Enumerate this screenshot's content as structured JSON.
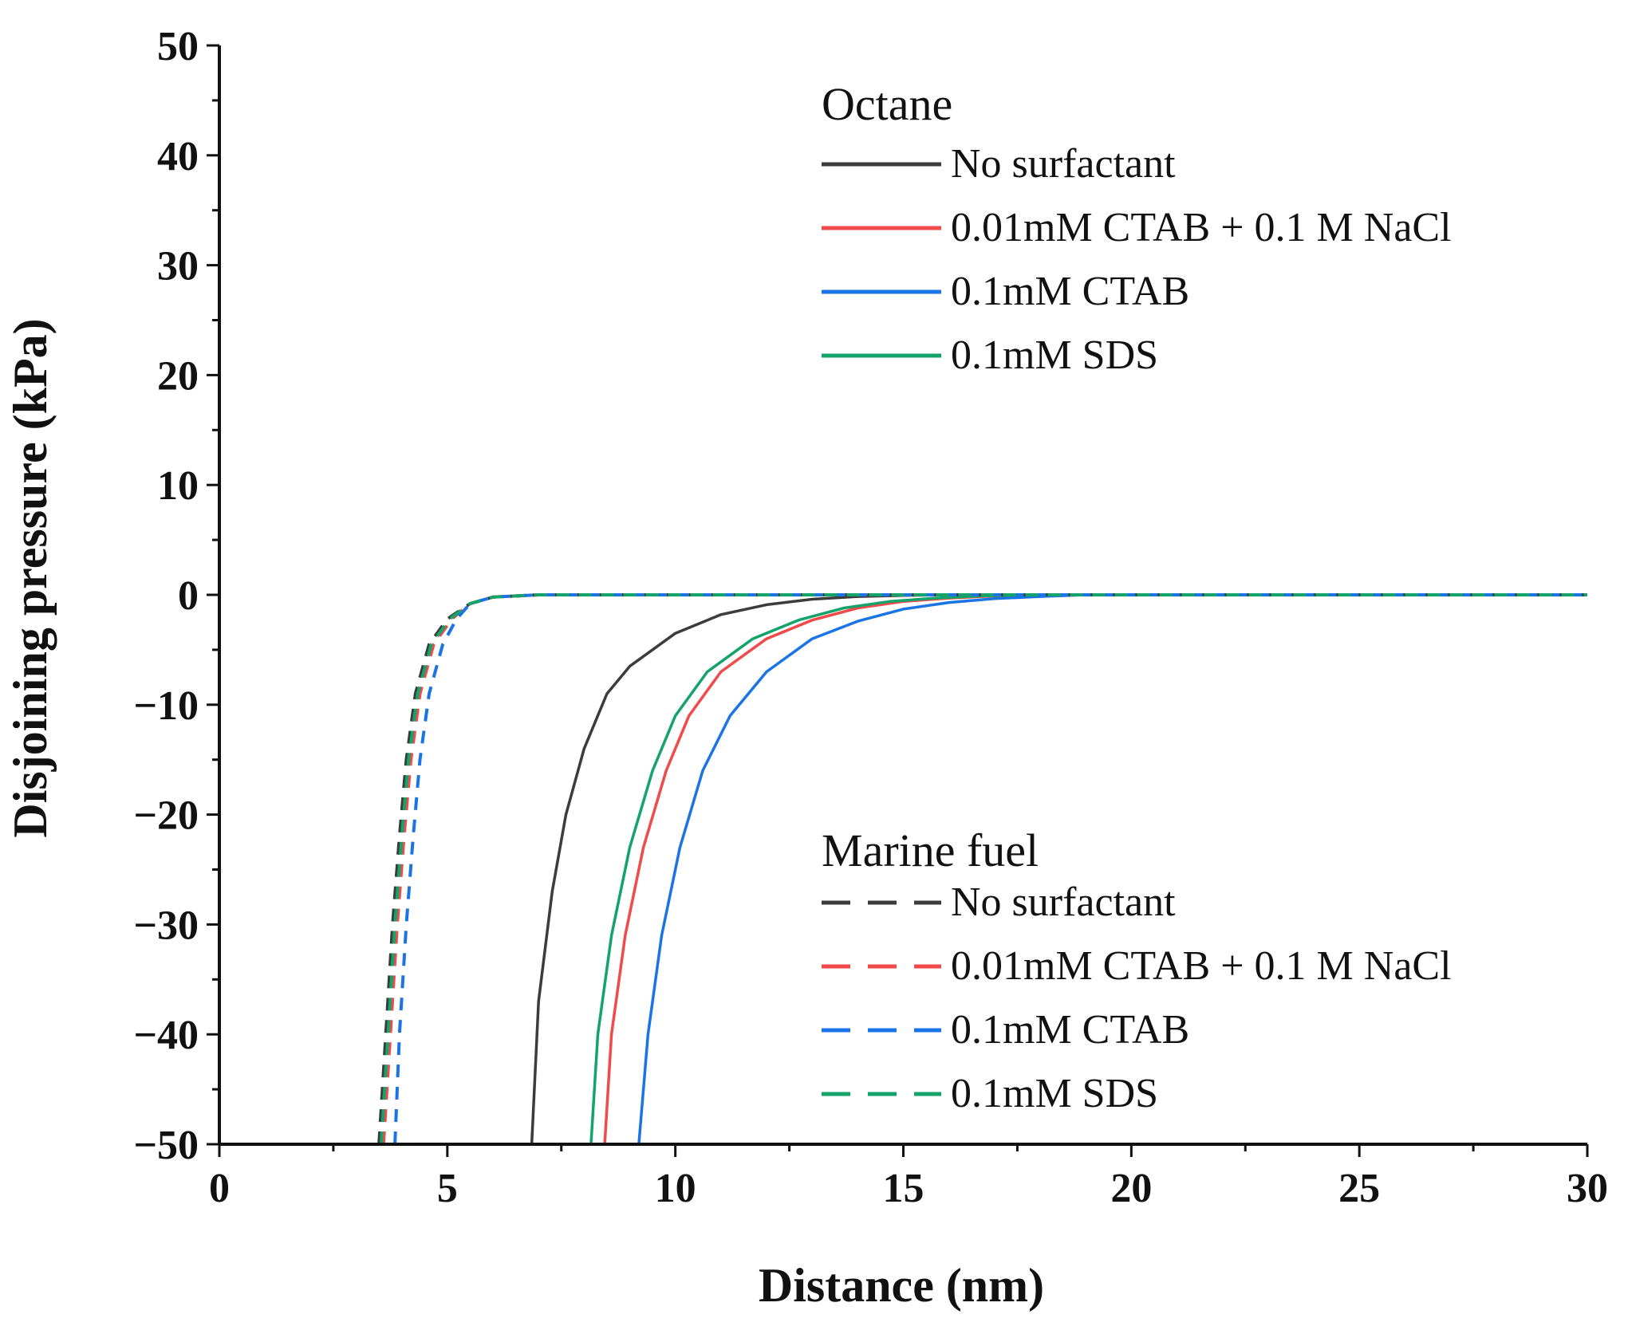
{
  "chart_data": {
    "type": "line",
    "title": "",
    "xlabel": "Distance (nm)",
    "ylabel": "Disjoining pressure (kPa)",
    "xlim": [
      0,
      30
    ],
    "ylim": [
      -50,
      50
    ],
    "x_ticks": [
      "0",
      "5",
      "10",
      "15",
      "20",
      "25",
      "30"
    ],
    "y_ticks": [
      "50",
      "40",
      "30",
      "20",
      "10",
      "0",
      "−10",
      "−20",
      "−30",
      "−40",
      "−50"
    ],
    "grid": false,
    "legend_groups": [
      {
        "title": "Octane",
        "placement": "top-right",
        "line_style": "solid",
        "series": [
          {
            "name": "No surfactant",
            "color": "#3c3c3c",
            "points": [
              [
                6.85,
                -50
              ],
              [
                7.0,
                -37
              ],
              [
                7.3,
                -27
              ],
              [
                7.6,
                -20
              ],
              [
                8.0,
                -14
              ],
              [
                8.5,
                -9
              ],
              [
                9.0,
                -6.5
              ],
              [
                10.0,
                -3.5
              ],
              [
                11.0,
                -1.8
              ],
              [
                12.0,
                -0.9
              ],
              [
                13.0,
                -0.4
              ],
              [
                14.0,
                -0.15
              ],
              [
                15.0,
                -0.05
              ],
              [
                16.0,
                0
              ],
              [
                30.0,
                0
              ]
            ]
          },
          {
            "name": "0.01mM CTAB + 0.1 M NaCl",
            "color": "#f04a4a",
            "points": [
              [
                8.45,
                -50
              ],
              [
                8.6,
                -40
              ],
              [
                8.9,
                -31
              ],
              [
                9.3,
                -23
              ],
              [
                9.8,
                -16
              ],
              [
                10.3,
                -11
              ],
              [
                11.0,
                -7
              ],
              [
                12.0,
                -4
              ],
              [
                13.0,
                -2.3
              ],
              [
                14.0,
                -1.2
              ],
              [
                15.0,
                -0.6
              ],
              [
                16.0,
                -0.3
              ],
              [
                17.0,
                -0.1
              ],
              [
                18.0,
                0
              ],
              [
                30.0,
                0
              ]
            ]
          },
          {
            "name": "0.1mM CTAB",
            "color": "#1a74e6",
            "points": [
              [
                9.2,
                -50
              ],
              [
                9.4,
                -40
              ],
              [
                9.7,
                -31
              ],
              [
                10.1,
                -23
              ],
              [
                10.6,
                -16
              ],
              [
                11.2,
                -11
              ],
              [
                12.0,
                -7
              ],
              [
                13.0,
                -4
              ],
              [
                14.0,
                -2.4
              ],
              [
                15.0,
                -1.3
              ],
              [
                16.0,
                -0.7
              ],
              [
                17.0,
                -0.35
              ],
              [
                18.0,
                -0.15
              ],
              [
                19.0,
                0
              ],
              [
                30.0,
                0
              ]
            ]
          },
          {
            "name": "0.1mM SDS",
            "color": "#14a36a",
            "points": [
              [
                8.15,
                -50
              ],
              [
                8.3,
                -40
              ],
              [
                8.6,
                -31
              ],
              [
                9.0,
                -23
              ],
              [
                9.5,
                -16
              ],
              [
                10.0,
                -11
              ],
              [
                10.7,
                -7
              ],
              [
                11.7,
                -4
              ],
              [
                12.7,
                -2.3
              ],
              [
                13.7,
                -1.2
              ],
              [
                14.7,
                -0.6
              ],
              [
                15.7,
                -0.3
              ],
              [
                16.7,
                -0.1
              ],
              [
                17.7,
                0
              ],
              [
                30.0,
                0
              ]
            ]
          }
        ]
      },
      {
        "title": "Marine fuel",
        "placement": "bottom-right",
        "line_style": "dashed",
        "series": [
          {
            "name": "No surfactant",
            "color": "#3c3c3c",
            "points": [
              [
                3.5,
                -50
              ],
              [
                3.65,
                -40
              ],
              [
                3.8,
                -30
              ],
              [
                3.95,
                -22
              ],
              [
                4.1,
                -15
              ],
              [
                4.3,
                -9
              ],
              [
                4.6,
                -4.5
              ],
              [
                5.0,
                -2.2
              ],
              [
                5.5,
                -0.8
              ],
              [
                6.0,
                -0.2
              ],
              [
                7.0,
                0
              ],
              [
                30.0,
                0
              ]
            ]
          },
          {
            "name": "0.01mM CTAB + 0.1 M NaCl",
            "color": "#f04a4a",
            "points": [
              [
                3.6,
                -50
              ],
              [
                3.75,
                -40
              ],
              [
                3.9,
                -30
              ],
              [
                4.05,
                -22
              ],
              [
                4.2,
                -15
              ],
              [
                4.4,
                -9
              ],
              [
                4.7,
                -4.5
              ],
              [
                5.1,
                -2.2
              ],
              [
                5.5,
                -0.8
              ],
              [
                6.0,
                -0.2
              ],
              [
                7.0,
                0
              ],
              [
                30.0,
                0
              ]
            ]
          },
          {
            "name": "0.1mM CTAB",
            "color": "#1a74e6",
            "points": [
              [
                3.85,
                -50
              ],
              [
                3.95,
                -40
              ],
              [
                4.1,
                -30
              ],
              [
                4.25,
                -22
              ],
              [
                4.4,
                -15
              ],
              [
                4.6,
                -9
              ],
              [
                4.9,
                -4.5
              ],
              [
                5.2,
                -2.2
              ],
              [
                5.5,
                -0.8
              ],
              [
                6.0,
                -0.2
              ],
              [
                7.0,
                0
              ],
              [
                30.0,
                0
              ]
            ]
          },
          {
            "name": "0.1mM SDS",
            "color": "#14a36a",
            "points": [
              [
                3.55,
                -50
              ],
              [
                3.7,
                -40
              ],
              [
                3.85,
                -30
              ],
              [
                4.0,
                -22
              ],
              [
                4.15,
                -15
              ],
              [
                4.35,
                -9
              ],
              [
                4.65,
                -4.5
              ],
              [
                5.05,
                -2.2
              ],
              [
                5.5,
                -0.8
              ],
              [
                6.0,
                -0.2
              ],
              [
                7.0,
                0
              ],
              [
                30.0,
                0
              ]
            ]
          }
        ]
      }
    ]
  }
}
